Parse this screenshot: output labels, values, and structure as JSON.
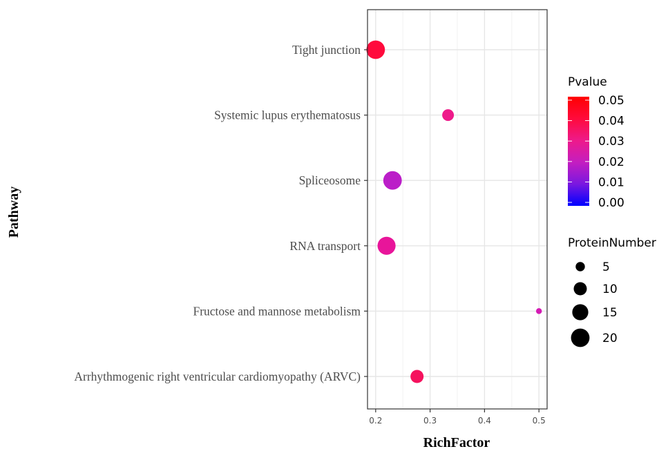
{
  "chart_data": {
    "type": "scatter",
    "xlabel": "RichFactor",
    "ylabel": "Pathway",
    "xlim": [
      0.185,
      0.515
    ],
    "xticks": [
      0.2,
      0.3,
      0.4,
      0.5
    ],
    "xtick_labels": [
      "0.2",
      "0.3",
      "0.4",
      "0.5"
    ],
    "grid": true,
    "categories": [
      "Tight junction",
      "Systemic lupus erythematosus",
      "Spliceosome",
      "RNA transport",
      "Fructose and mannose metabolism",
      "Arrhythmogenic right ventricular cardiomyopathy (ARVC)"
    ],
    "points": [
      {
        "pathway": "Tight junction",
        "richfactor": 0.2,
        "pvalue": 0.042,
        "protein_number": 20,
        "color": "#ff0a3c"
      },
      {
        "pathway": "Systemic lupus erythematosus",
        "richfactor": 0.333,
        "pvalue": 0.031,
        "protein_number": 8,
        "color": "#ee1a8a"
      },
      {
        "pathway": "Spliceosome",
        "richfactor": 0.231,
        "pvalue": 0.016,
        "protein_number": 20,
        "color": "#bb1ec8"
      },
      {
        "pathway": "RNA transport",
        "richfactor": 0.22,
        "pvalue": 0.029,
        "protein_number": 19,
        "color": "#e8159a"
      },
      {
        "pathway": "Fructose and mannose metabolism",
        "richfactor": 0.5,
        "pvalue": 0.024,
        "protein_number": 2,
        "color": "#d41ab4"
      },
      {
        "pathway": "Arrhythmogenic right ventricular cardiomyopathy (ARVC)",
        "richfactor": 0.276,
        "pvalue": 0.036,
        "protein_number": 10,
        "color": "#f5125e"
      }
    ],
    "legend_color": {
      "title": "Pvalue",
      "ticks": [
        "0.05",
        "0.04",
        "0.03",
        "0.02",
        "0.01",
        "0.00"
      ],
      "values": [
        0.05,
        0.04,
        0.03,
        0.02,
        0.01,
        0.0
      ],
      "low_color": "#0000ff",
      "high_color": "#ff0000",
      "placement": "right"
    },
    "legend_size": {
      "title": "ProteinNumber",
      "labels": [
        "5",
        "10",
        "15",
        "20"
      ],
      "values": [
        5,
        10,
        15,
        20
      ],
      "placement": "right"
    }
  }
}
